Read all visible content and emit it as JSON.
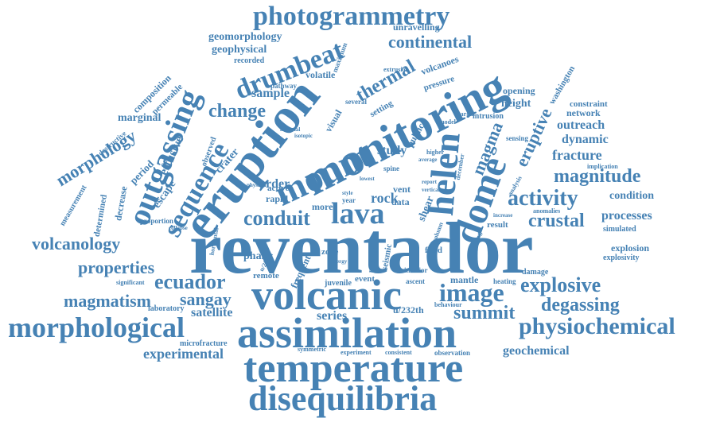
{
  "color": "#4682b4",
  "words": {
    "reventador": "reventador",
    "volcanic": "volcanic",
    "assimilation": "assimilation",
    "temperature": "temperature",
    "disequilibria": "disequilibria",
    "morphological": "morphological",
    "physiochemical": "physiochemical",
    "eruption": "eruption",
    "monitoring": "monitoring",
    "mount": "mount",
    "dome": "dome",
    "helen": "helen",
    "lava": "lava",
    "outgassing": "outgassing",
    "sequence": "sequence",
    "drumbeat": "drumbeat",
    "photogrammetry": "photogrammetry",
    "continental": "continental",
    "thermal": "thermal",
    "change": "change",
    "magma": "magma",
    "eruptive": "eruptive",
    "activity": "activity",
    "magnitude": "magnitude",
    "image": "image",
    "explosive": "explosive",
    "degassing": "degassing",
    "summit": "summit",
    "crustal": "crustal",
    "conduit": "conduit",
    "ecuador": "ecuador",
    "sangay": "sangay",
    "magmatism": "magmatism",
    "volcanology": "volcanology",
    "properties": "properties",
    "morphology": "morphology",
    "geophysical": "geophysical",
    "geomorphology": "geomorphology",
    "fracture": "fracture",
    "dynamic": "dynamic",
    "outreach": "outreach",
    "processes": "processes",
    "explosion": "explosion",
    "explosivity": "explosivity",
    "experimental": "experimental",
    "geochemical": "geochemical",
    "satellite": "satellite",
    "series": "series",
    "rock": "rock",
    "order": "order",
    "study": "study",
    "sample": "sample",
    "network": "network",
    "height": "height",
    "condition": "condition",
    "shear": "shear",
    "effusive": "effusive",
    "escape": "escape",
    "crater": "crater",
    "rapid": "rapid",
    "active": "active",
    "phase": "phase",
    "remote": "remote",
    "data": "data",
    "vent": "vent",
    "more": "more",
    "zone": "zone",
    "event": "event",
    "mantle": "mantle",
    "juvenile": "juvenile",
    "u232th": "u/232th",
    "laboratory": "laboratory",
    "microfracture": "microfracture",
    "decrease": "decrease",
    "determined": "determined",
    "period": "period",
    "marginal": "marginal",
    "composition": "composition",
    "permeable": "permeable",
    "destructive": "destructive",
    "measurement": "measurement",
    "volatile": "volatile",
    "recorded": "recorded",
    "unravelling": "unravelling",
    "volcanoes": "volcanoes",
    "washington": "washington",
    "constraint": "constraint",
    "opening": "opening",
    "pressure": "pressure",
    "visual": "visual",
    "public": "public",
    "pathway": "pathway",
    "maximum": "maximum",
    "several": "several",
    "setting": "setting",
    "extrusion": "extrusion",
    "observed": "observed",
    "intrusion": "intrusion",
    "sensing": "sensing",
    "implication": "implication",
    "simulated": "simulated",
    "anomalies": "anomalies",
    "result": "result",
    "damage": "damage",
    "heating": "heating",
    "behaviour": "behaviour",
    "ascent": "ascent",
    "interior": "interior",
    "seismic": "seismic",
    "previous": "previous",
    "fluid": "fluid",
    "frequent": "frequent",
    "significant": "significant",
    "symmetric": "symmetric",
    "experiment": "experiment",
    "consistent": "consistent",
    "observation": "observation",
    "proportion": "proportion",
    "collapse": "collapse",
    "horizontal": "horizontal",
    "model": "model",
    "margin": "margin",
    "year": "year",
    "spine": "spine",
    "higher": "higher",
    "average": "average",
    "isotopic": "isotopic",
    "physical": "physical",
    "material": "material",
    "december": "december",
    "column": "column",
    "linking": "linking",
    "increase": "increase",
    "analysis": "analysis",
    "lowest": "lowest",
    "energy": "energy",
    "style": "style",
    "report": "report",
    "vertical": "vertical"
  }
}
